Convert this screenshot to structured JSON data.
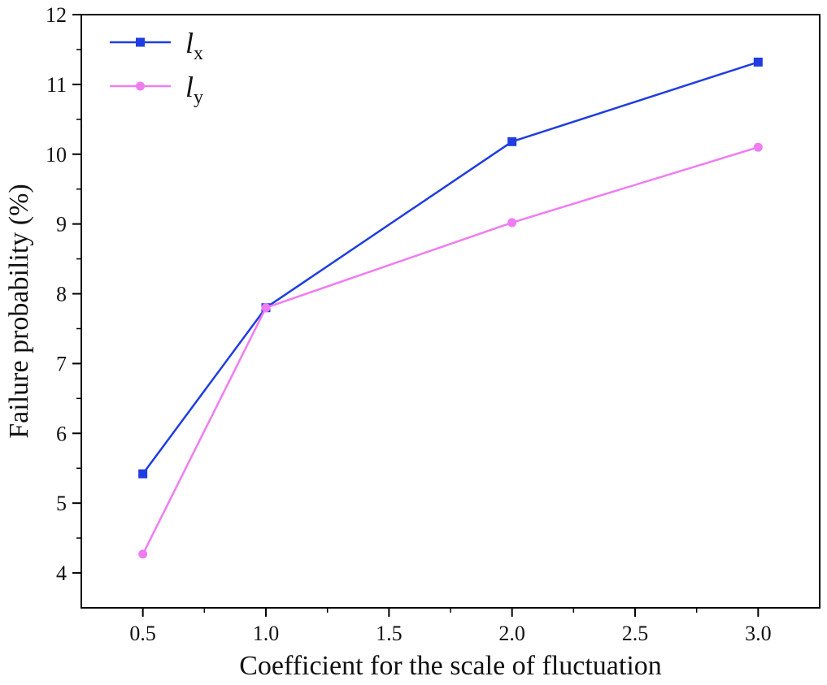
{
  "chart_data": {
    "type": "line",
    "xlabel": "Coefficient for the scale of fluctuation",
    "ylabel": "Failure probability (%)",
    "xlim": [
      0.25,
      3.25
    ],
    "ylim": [
      3.5,
      12
    ],
    "x_ticks": [
      0.5,
      1.0,
      1.5,
      2.0,
      2.5,
      3.0
    ],
    "x_tick_labels": [
      "0.5",
      "1.0",
      "1.5",
      "2.0",
      "2.5",
      "3.0"
    ],
    "y_ticks": [
      4,
      5,
      6,
      7,
      8,
      9,
      10,
      11,
      12
    ],
    "y_tick_labels": [
      "4",
      "5",
      "6",
      "7",
      "8",
      "9",
      "10",
      "11",
      "12"
    ],
    "legend_position": "top-left",
    "grid": false,
    "series": [
      {
        "name": "l",
        "subscript": "x",
        "color": "#1f3de0",
        "marker": "square",
        "x": [
          0.5,
          1.0,
          2.0,
          3.0
        ],
        "y": [
          5.42,
          7.8,
          10.18,
          11.32
        ]
      },
      {
        "name": "l",
        "subscript": "y",
        "color": "#f07cf2",
        "marker": "circle",
        "x": [
          0.5,
          1.0,
          2.0,
          3.0
        ],
        "y": [
          4.27,
          7.8,
          9.02,
          10.1
        ]
      }
    ]
  }
}
